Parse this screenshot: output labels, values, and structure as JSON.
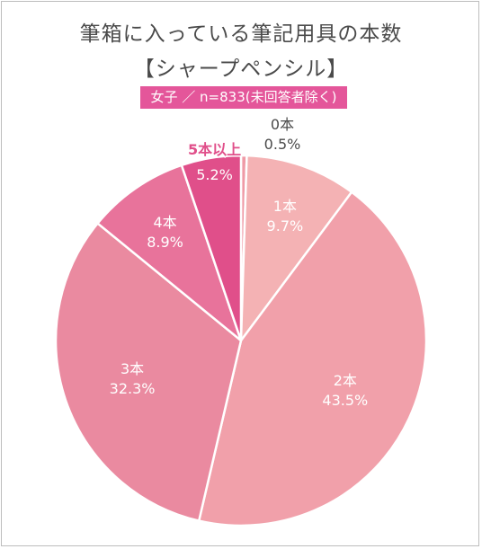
{
  "chart_data": {
    "type": "pie",
    "title": "筆箱に入っている筆記用具の本数",
    "subtitle": "【シャープペンシル】",
    "note": "女子 ／ n=833(未回答者除く)",
    "categories": [
      "0本",
      "1本",
      "2本",
      "3本",
      "4本",
      "5本以上"
    ],
    "values": [
      0.5,
      9.7,
      43.5,
      32.3,
      8.9,
      5.2
    ],
    "value_labels": [
      "0.5%",
      "9.7%",
      "43.5%",
      "32.3%",
      "8.9%",
      "5.2%"
    ],
    "colors": [
      "#ef9aa6",
      "#f4b2b4",
      "#f1a0aa",
      "#ea8aa0",
      "#e8739b",
      "#e04f8a"
    ],
    "start": "top",
    "direction": "clockwise"
  }
}
